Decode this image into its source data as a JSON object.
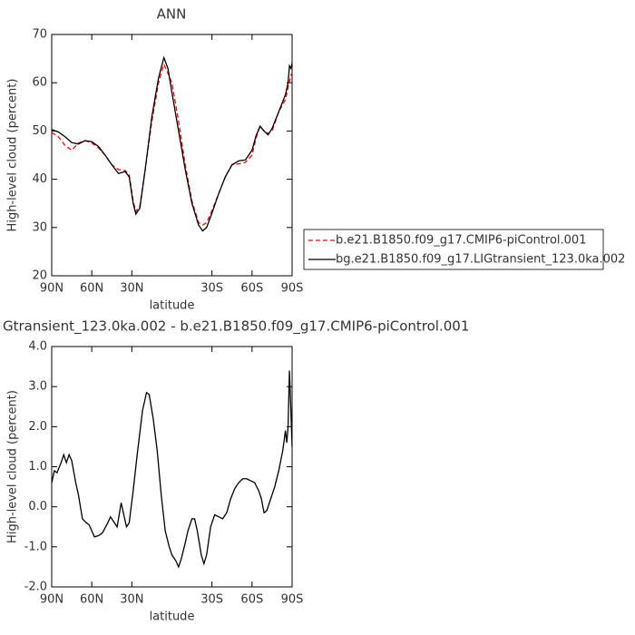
{
  "chart_data": [
    {
      "type": "line",
      "title": "ANN",
      "xlabel": "latitude",
      "ylabel": "High-level cloud (percent)",
      "x": [
        90,
        85,
        80,
        75,
        70,
        65,
        60,
        55,
        50,
        45,
        40,
        35,
        32,
        29,
        27,
        24,
        20,
        15,
        10,
        6,
        3,
        0,
        -5,
        -10,
        -15,
        -20,
        -23,
        -26,
        -30,
        -35,
        -40,
        -45,
        -50,
        -55,
        -60,
        -63,
        -66,
        -69,
        -72,
        -75,
        -80,
        -85,
        -87,
        -88,
        -89,
        -90
      ],
      "series": [
        {
          "name": "b.e21.B1850.f09_g17.CMIP6-piControl.001",
          "color": "#ff0000",
          "dash": true,
          "values": [
            49.7,
            48.8,
            47,
            46,
            47.5,
            48,
            47.5,
            46.5,
            45,
            43,
            42,
            41.8,
            41,
            35.5,
            33.3,
            34.5,
            42,
            52,
            60,
            63.8,
            62,
            60,
            52,
            43,
            35.5,
            31,
            30.5,
            31,
            33.5,
            37,
            40.5,
            43,
            43.2,
            43.5,
            45,
            48.5,
            51,
            50,
            49.5,
            50,
            54,
            56.5,
            59,
            60,
            61.5,
            62
          ]
        },
        {
          "name": "bg.e21.B1850.f09_g17.LIGtransient_123.0ka.002",
          "color": "#000000",
          "dash": false,
          "values": [
            50.3,
            49.8,
            48.8,
            47.6,
            47.3,
            48,
            47.8,
            46.8,
            45,
            43,
            41.2,
            41.6,
            40.5,
            35,
            32.8,
            34,
            42,
            53,
            61,
            65.2,
            63,
            58,
            50,
            42,
            35,
            30.5,
            29.3,
            30,
            33,
            37,
            40.5,
            43,
            43.8,
            44,
            46,
            49,
            51,
            50,
            49.2,
            50.5,
            54,
            57.5,
            60,
            63.5,
            63,
            64
          ]
        }
      ],
      "xlim": [
        90,
        -90
      ],
      "xticks": [
        {
          "value": 90,
          "label": "90N"
        },
        {
          "value": 60,
          "label": "60N"
        },
        {
          "value": 30,
          "label": "30N"
        },
        {
          "value": -30,
          "label": "30S"
        },
        {
          "value": -60,
          "label": "60S"
        },
        {
          "value": -90,
          "label": "90S"
        }
      ],
      "ylim": [
        20,
        70
      ],
      "yticks": [
        20,
        30,
        40,
        50,
        60,
        70
      ],
      "legend": "right"
    },
    {
      "type": "line",
      "title": "Gtransient_123.0ka.002 - b.e21.B1850.f09_g17.CMIP6-piControl.001",
      "xlabel": "latitude",
      "ylabel": "High-level cloud (percent)",
      "x": [
        90,
        88,
        86,
        83,
        81,
        79,
        77,
        75,
        72,
        70,
        67,
        64,
        62,
        60,
        58,
        55,
        52,
        48,
        46,
        43,
        41,
        38,
        36,
        34,
        32,
        29,
        26,
        22,
        19,
        17,
        14,
        11,
        8,
        5,
        2,
        0,
        -3,
        -5,
        -7,
        -10,
        -12,
        -15,
        -17,
        -19,
        -22,
        -24,
        -26,
        -29,
        -32,
        -35,
        -38,
        -41,
        -44,
        -47,
        -50,
        -53,
        -56,
        -59,
        -62,
        -65,
        -67,
        -69,
        -71,
        -73,
        -75,
        -77,
        -80,
        -83,
        -85,
        -86,
        -87,
        -88,
        -89,
        -90
      ],
      "series": [
        {
          "color": "#000000",
          "dash": false,
          "values": [
            0.6,
            0.9,
            0.85,
            1.1,
            1.3,
            1.1,
            1.3,
            1.15,
            0.6,
            0.3,
            -0.3,
            -0.4,
            -0.45,
            -0.6,
            -0.75,
            -0.72,
            -0.65,
            -0.4,
            -0.25,
            -0.4,
            -0.5,
            0.1,
            -0.2,
            -0.5,
            -0.4,
            0.4,
            1.3,
            2.4,
            2.85,
            2.8,
            2.2,
            1.4,
            0.3,
            -0.6,
            -1.0,
            -1.2,
            -1.35,
            -1.5,
            -1.3,
            -0.9,
            -0.6,
            -0.3,
            -0.3,
            -0.6,
            -1.2,
            -1.42,
            -1.2,
            -0.5,
            -0.2,
            -0.25,
            -0.3,
            -0.15,
            0.2,
            0.45,
            0.6,
            0.7,
            0.7,
            0.65,
            0.6,
            0.4,
            0.2,
            -0.15,
            -0.1,
            0.1,
            0.3,
            0.5,
            0.9,
            1.4,
            1.9,
            1.6,
            2.0,
            3.4,
            2.5,
            1.5
          ]
        }
      ],
      "xlim": [
        90,
        -90
      ],
      "xticks": [
        {
          "value": 90,
          "label": "90N"
        },
        {
          "value": 60,
          "label": "60N"
        },
        {
          "value": 30,
          "label": "30N"
        },
        {
          "value": -30,
          "label": "30S"
        },
        {
          "value": -60,
          "label": "60S"
        },
        {
          "value": -90,
          "label": "90S"
        }
      ],
      "ylim": [
        -2,
        4
      ],
      "yticks": [
        {
          "value": -2,
          "label": "-2.0"
        },
        {
          "value": -1,
          "label": "-1.0"
        },
        {
          "value": 0,
          "label": "0.0"
        },
        {
          "value": 1,
          "label": "1.0"
        },
        {
          "value": 2,
          "label": "2.0"
        },
        {
          "value": 3,
          "label": "3.0"
        },
        {
          "value": 4,
          "label": "4.0"
        }
      ]
    }
  ]
}
